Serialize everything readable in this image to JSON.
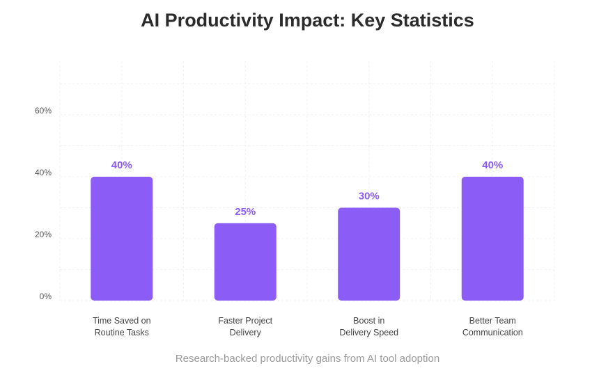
{
  "chart_data": {
    "type": "bar",
    "title": "AI Productivity Impact: Key Statistics",
    "caption": "Research-backed productivity gains from AI tool adoption",
    "categories": [
      [
        "Time Saved on",
        "Routine Tasks"
      ],
      [
        "Faster Project",
        "Delivery"
      ],
      [
        "Boost in",
        "Delivery Speed"
      ],
      [
        "Better Team",
        "Communication"
      ]
    ],
    "values": [
      40,
      25,
      30,
      40
    ],
    "data_labels": [
      "40%",
      "25%",
      "30%",
      "40%"
    ],
    "y_ticks": [
      {
        "value": 0,
        "label": "0%"
      },
      {
        "value": 20,
        "label": "20%"
      },
      {
        "value": 40,
        "label": "40%"
      },
      {
        "value": 60,
        "label": "60%"
      }
    ],
    "ylim": [
      0,
      70
    ],
    "grid": true,
    "legend": "none",
    "colors": {
      "bar": "#8b5cf6",
      "data_label": "#8b5cf6",
      "grid": "#f0f0f0"
    }
  }
}
